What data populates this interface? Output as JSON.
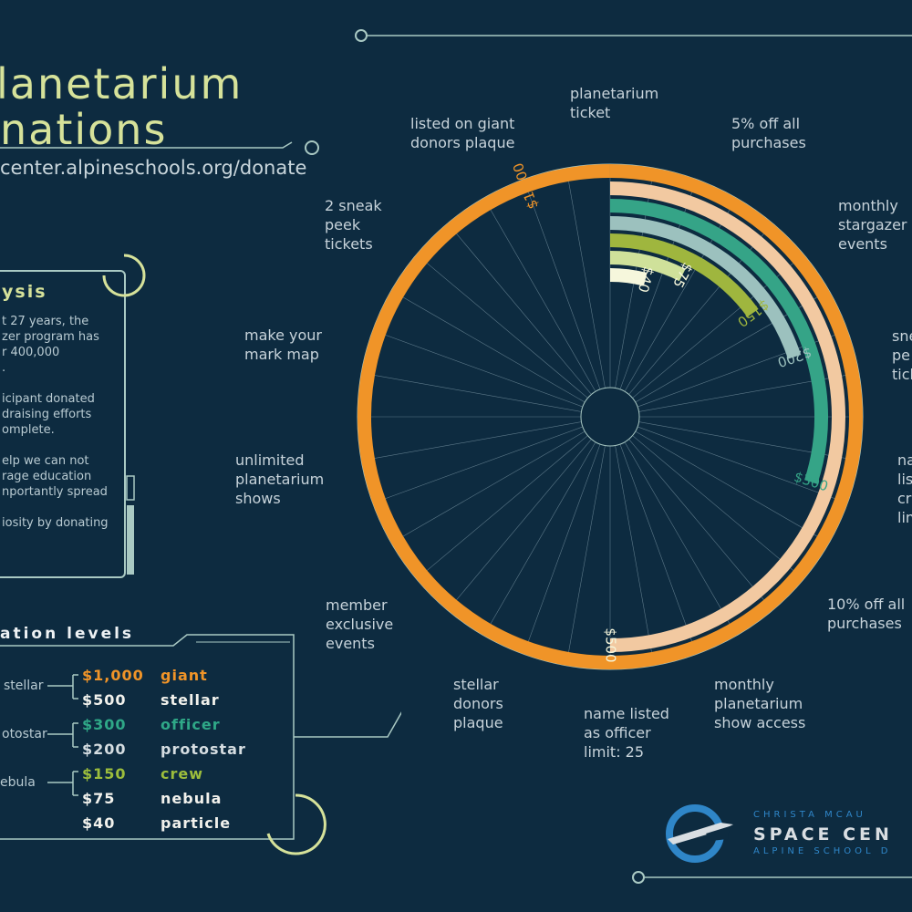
{
  "title": {
    "line1": "lanetarium",
    "line2": "nations",
    "url": "center.alpineschools.org/donate"
  },
  "analysis": {
    "heading": "ysis",
    "lines": [
      "t 27 years, the",
      "zer program has",
      "r 400,000",
      ".",
      "",
      "icipant donated",
      "draising efforts",
      "omplete.",
      "",
      "elp we can not",
      "rage education",
      "nportantly spread",
      "",
      "iosity by donating"
    ]
  },
  "levels": {
    "heading": "ation levels",
    "groups": [
      "stellar",
      "otostar",
      "ebula"
    ],
    "items": [
      {
        "amount": "$1,000",
        "name": "giant",
        "color": "#f09428"
      },
      {
        "amount": "$500",
        "name": "stellar",
        "color": "#f1f1ec"
      },
      {
        "amount": "$300",
        "name": "officer",
        "color": "#2fa887"
      },
      {
        "amount": "$200",
        "name": "protostar",
        "color": "#d5dde1"
      },
      {
        "amount": "$150",
        "name": "crew",
        "color": "#9cbd3c"
      },
      {
        "amount": "$75",
        "name": "nebula",
        "color": "#f1f1ec"
      },
      {
        "amount": "$40",
        "name": "particle",
        "color": "#f1f1ec"
      }
    ]
  },
  "benefits": {
    "b1": [
      "planetarium",
      "ticket"
    ],
    "b2": [
      "5% off all",
      "purchases"
    ],
    "b3": [
      "monthly",
      "stargazer",
      "events"
    ],
    "b4": [
      "sne",
      "pe",
      "tick"
    ],
    "b5": [
      "na",
      "list",
      "cr",
      "lim"
    ],
    "b6": [
      "10% off all",
      "purchases"
    ],
    "b7": [
      "monthly",
      "planetarium",
      "show access"
    ],
    "b8": [
      "name listed",
      "as officer",
      "limit: 25"
    ],
    "b9": [
      "stellar",
      "donors",
      "plaque"
    ],
    "b10": [
      "member",
      "exclusive",
      "events"
    ],
    "b11": [
      "unlimited",
      "planetarium",
      "shows"
    ],
    "b12": [
      "make your",
      "mark map"
    ],
    "b13": [
      "2 sneak",
      "peek",
      "tickets"
    ],
    "b14": [
      "listed on giant",
      "donors plaque"
    ]
  },
  "logo": {
    "line1": "CHRISTA MCAU",
    "line2": "SPACE CEN",
    "line3": "ALPINE SCHOOL D"
  },
  "colors": {
    "background": "#0d2b40",
    "accent": "#d6e29a",
    "panel_border": "#a9c9c3"
  },
  "chart_data": {
    "type": "radial-bar",
    "series": [
      {
        "label": "$1,000",
        "value": 1000,
        "color": "#f09428"
      },
      {
        "label": "$500",
        "value": 500,
        "color": "#f2c9a1"
      },
      {
        "label": "$300",
        "value": 300,
        "color": "#35a487"
      },
      {
        "label": "$200",
        "value": 200,
        "color": "#9cc1be"
      },
      {
        "label": "$150",
        "value": 150,
        "color": "#9fb63e"
      },
      {
        "label": "$75",
        "value": 75,
        "color": "#cfe19a"
      },
      {
        "label": "$40",
        "value": 40,
        "color": "#f6f7dc"
      }
    ],
    "max": 1000,
    "spokes": 36
  }
}
